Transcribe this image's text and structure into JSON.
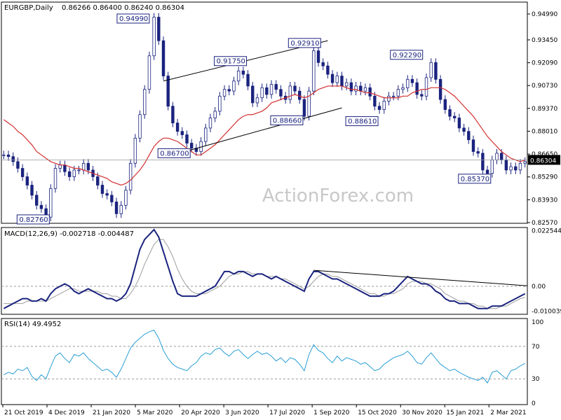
{
  "header": {
    "symbol": "EURGBP,Daily",
    "ohlc": "0.86266 0.86400 0.86240 0.86304"
  },
  "watermark": "ActionForex.com",
  "macd_label": "MACD(12,26,9) -0.002718 -0.004487",
  "rsi_label": "RSI(14) 49.4952",
  "colors": {
    "candle": "#1a237e",
    "ma": "#d32f2f",
    "macd": "#1a237e",
    "signal": "#9e9e9e",
    "rsi": "#2a9fd6",
    "trendline": "#000000",
    "current_price_bg": "#000000"
  },
  "chart_data": [
    {
      "type": "line",
      "panel": "price",
      "ylim": [
        0.8257,
        0.9499
      ],
      "yticks": [
        "0.94990",
        "0.93450",
        "0.92090",
        "0.90730",
        "0.89370",
        "0.88010",
        "0.86650",
        "0.85290",
        "0.83930",
        "0.82570"
      ],
      "current_price": "0.86304",
      "series": [
        {
          "values": [
            0.866,
            0.865,
            0.862,
            0.858,
            0.853,
            0.848,
            0.842,
            0.836,
            0.834,
            0.829,
            0.846,
            0.858,
            0.86,
            0.856,
            0.853,
            0.857,
            0.857,
            0.861,
            0.857,
            0.853,
            0.848,
            0.843,
            0.842,
            0.838,
            0.831,
            0.836,
            0.845,
            0.861,
            0.876,
            0.89,
            0.905,
            0.925,
            0.948,
            0.934,
            0.913,
            0.895,
            0.885,
            0.88,
            0.878,
            0.873,
            0.87,
            0.868,
            0.874,
            0.882,
            0.888,
            0.892,
            0.901,
            0.905,
            0.904,
            0.91,
            0.916,
            0.914,
            0.907,
            0.897,
            0.9,
            0.906,
            0.902,
            0.908,
            0.905,
            0.901,
            0.899,
            0.907,
            0.904,
            0.899,
            0.889,
            0.904,
            0.928,
            0.921,
            0.919,
            0.914,
            0.909,
            0.913,
            0.907,
            0.909,
            0.904,
            0.907,
            0.904,
            0.906,
            0.901,
            0.895,
            0.893,
            0.898,
            0.901,
            0.901,
            0.905,
            0.906,
            0.911,
            0.909,
            0.902,
            0.901,
            0.912,
            0.921,
            0.911,
            0.899,
            0.893,
            0.889,
            0.888,
            0.882,
            0.88,
            0.875,
            0.868,
            0.867,
            0.857,
            0.855,
            0.863,
            0.867,
            0.863,
            0.857,
            0.859,
            0.857,
            0.861,
            0.862
          ]
        },
        {
          "name": "",
          "values": [
            0.887,
            0.885,
            0.883,
            0.88,
            0.878,
            0.875,
            0.872,
            0.868,
            0.866,
            0.864,
            0.862,
            0.861,
            0.86,
            0.86,
            0.859,
            0.858,
            0.858,
            0.857,
            0.856,
            0.855,
            0.854,
            0.853,
            0.852,
            0.85,
            0.849,
            0.848,
            0.849,
            0.851,
            0.854,
            0.857,
            0.861,
            0.866,
            0.871,
            0.874,
            0.876,
            0.876,
            0.875,
            0.874,
            0.872,
            0.87,
            0.868,
            0.866,
            0.866,
            0.868,
            0.87,
            0.872,
            0.875,
            0.878,
            0.881,
            0.884,
            0.887,
            0.889,
            0.89,
            0.89,
            0.891,
            0.892,
            0.894,
            0.897,
            0.898,
            0.899,
            0.9,
            0.901,
            0.902,
            0.901,
            0.9,
            0.901,
            0.903,
            0.905,
            0.906,
            0.907,
            0.907,
            0.907,
            0.907,
            0.906,
            0.905,
            0.905,
            0.904,
            0.903,
            0.903,
            0.902,
            0.901,
            0.9,
            0.9,
            0.9,
            0.9,
            0.901,
            0.901,
            0.903,
            0.904,
            0.905,
            0.905,
            0.906,
            0.906,
            0.906,
            0.905,
            0.903,
            0.901,
            0.898,
            0.895,
            0.892,
            0.889,
            0.885,
            0.881,
            0.877,
            0.874,
            0.871,
            0.868,
            0.866,
            0.864,
            0.863,
            0.862,
            0.863
          ]
        }
      ],
      "annotations": [
        {
          "text": "0.94990",
          "value": 0.9499,
          "i": 31
        },
        {
          "text": "0.82760",
          "value": 0.8276,
          "i": 10
        },
        {
          "text": "0.91750",
          "value": 0.9175,
          "i": 52
        },
        {
          "text": "0.86700",
          "value": 0.867,
          "i": 40
        },
        {
          "text": "0.92910",
          "value": 0.9291,
          "i": 66
        },
        {
          "text": "0.88660",
          "value": 0.8866,
          "i": 64
        },
        {
          "text": "0.92290",
          "value": 0.9229,
          "i": 91
        },
        {
          "text": "0.88610",
          "value": 0.8861,
          "i": 80
        },
        {
          "text": "0.85370",
          "value": 0.8537,
          "i": 104
        }
      ],
      "xtick_labels": [
        "21 Oct 2019",
        "4 Dec 2019",
        "21 Jan 2020",
        "5 Mar 2020",
        "20 Apr 2020",
        "3 Jun 2020",
        "17 Jul 2020",
        "1 Sep 2020",
        "15 Oct 2020",
        "30 Nov 2020",
        "15 Jan 2021",
        "2 Mar 2021"
      ]
    },
    {
      "type": "line",
      "panel": "macd",
      "ylim": [
        -0.0105,
        0.023
      ],
      "yticks": [
        "0.022544",
        "0.00",
        "-0.010039"
      ],
      "series": [
        {
          "name": "MACD",
          "values": [
            -0.009,
            -0.008,
            -0.007,
            -0.006,
            -0.005,
            -0.005,
            -0.006,
            -0.006,
            -0.005,
            -0.006,
            -0.003,
            -0.001,
            0.0,
            0.001,
            0.0,
            -0.002,
            -0.003,
            -0.002,
            -0.001,
            -0.002,
            -0.003,
            -0.004,
            -0.005,
            -0.005,
            -0.006,
            -0.005,
            -0.003,
            0.001,
            0.008,
            0.015,
            0.019,
            0.021,
            0.023,
            0.02,
            0.014,
            0.008,
            0.002,
            -0.003,
            -0.004,
            -0.004,
            -0.004,
            -0.004,
            -0.003,
            -0.002,
            -0.001,
            0.0,
            0.003,
            0.006,
            0.006,
            0.005,
            0.006,
            0.006,
            0.005,
            0.004,
            0.005,
            0.005,
            0.004,
            0.003,
            0.004,
            0.003,
            0.002,
            0.001,
            0.0,
            -0.001,
            -0.002,
            0.003,
            0.006,
            0.006,
            0.005,
            0.004,
            0.003,
            0.003,
            0.002,
            0.001,
            0.0,
            -0.001,
            -0.002,
            -0.003,
            -0.004,
            -0.004,
            -0.004,
            -0.003,
            -0.003,
            -0.002,
            0.0,
            0.002,
            0.004,
            0.003,
            0.002,
            0.001,
            0.001,
            0.0,
            -0.002,
            -0.003,
            -0.005,
            -0.006,
            -0.006,
            -0.007,
            -0.007,
            -0.007,
            -0.008,
            -0.009,
            -0.009,
            -0.009,
            -0.008,
            -0.008,
            -0.008,
            -0.007,
            -0.006,
            -0.005,
            -0.004,
            -0.003
          ]
        },
        {
          "name": "Signal",
          "values": [
            -0.007,
            -0.007,
            -0.007,
            -0.007,
            -0.007,
            -0.006,
            -0.006,
            -0.006,
            -0.006,
            -0.006,
            -0.005,
            -0.004,
            -0.003,
            -0.002,
            -0.001,
            -0.001,
            -0.002,
            -0.002,
            -0.002,
            -0.002,
            -0.002,
            -0.003,
            -0.003,
            -0.004,
            -0.004,
            -0.005,
            -0.005,
            -0.003,
            0.0,
            0.004,
            0.009,
            0.013,
            0.017,
            0.019,
            0.019,
            0.016,
            0.012,
            0.007,
            0.003,
            0.0,
            -0.002,
            -0.003,
            -0.003,
            -0.003,
            -0.002,
            -0.001,
            0.0,
            0.002,
            0.004,
            0.005,
            0.005,
            0.006,
            0.006,
            0.005,
            0.005,
            0.005,
            0.004,
            0.004,
            0.004,
            0.003,
            0.003,
            0.002,
            0.001,
            0.0,
            -0.001,
            0.0,
            0.002,
            0.004,
            0.005,
            0.005,
            0.004,
            0.004,
            0.003,
            0.002,
            0.001,
            0.0,
            -0.001,
            -0.002,
            -0.003,
            -0.003,
            -0.004,
            -0.004,
            -0.003,
            -0.003,
            -0.002,
            -0.001,
            0.001,
            0.002,
            0.002,
            0.002,
            0.001,
            0.001,
            0.0,
            -0.001,
            -0.003,
            -0.004,
            -0.005,
            -0.006,
            -0.006,
            -0.007,
            -0.007,
            -0.008,
            -0.008,
            -0.009,
            -0.009,
            -0.009,
            -0.008,
            -0.008,
            -0.007,
            -0.006,
            -0.005,
            -0.0045
          ]
        }
      ]
    },
    {
      "type": "line",
      "panel": "rsi",
      "ylim": [
        0,
        100
      ],
      "yticks": [
        "100",
        "70",
        "30",
        "0"
      ],
      "series": [
        {
          "name": "RSI",
          "values": [
            35,
            38,
            36,
            42,
            40,
            44,
            33,
            28,
            35,
            30,
            45,
            58,
            62,
            55,
            50,
            60,
            58,
            62,
            55,
            50,
            45,
            40,
            42,
            38,
            32,
            42,
            55,
            68,
            75,
            80,
            85,
            88,
            90,
            80,
            65,
            55,
            48,
            44,
            42,
            40,
            46,
            50,
            58,
            62,
            60,
            66,
            68,
            62,
            58,
            64,
            66,
            60,
            55,
            60,
            64,
            60,
            62,
            58,
            52,
            56,
            50,
            56,
            54,
            48,
            40,
            60,
            72,
            65,
            62,
            55,
            50,
            58,
            52,
            56,
            54,
            52,
            48,
            50,
            45,
            40,
            42,
            48,
            52,
            56,
            58,
            60,
            64,
            58,
            50,
            48,
            56,
            62,
            55,
            48,
            44,
            40,
            42,
            38,
            35,
            32,
            30,
            28,
            32,
            25,
            38,
            40,
            35,
            30,
            40,
            42,
            46,
            49
          ]
        }
      ]
    }
  ]
}
